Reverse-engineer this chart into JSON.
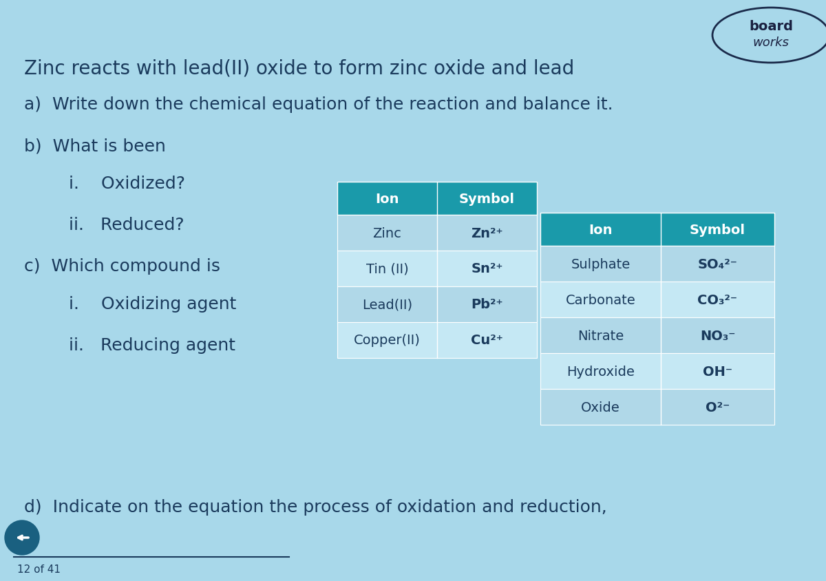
{
  "bg_color": "#a8d8ea",
  "text_color": "#1a3a5c",
  "teal_header_color": "#1a9aaa",
  "table_bg_light": "#b0d8e8",
  "table_bg_lighter": "#c5e8f4",
  "title": "Zinc reacts with lead(II) oxide to form zinc oxide and lead",
  "table1_headers": [
    "Ion",
    "Symbol"
  ],
  "table1_rows": [
    [
      "Zinc",
      "Zn²⁺"
    ],
    [
      "Tin (II)",
      "Sn²⁺"
    ],
    [
      "Lead(II)",
      "Pb²⁺"
    ],
    [
      "Copper(II)",
      "Cu²⁺"
    ]
  ],
  "table2_headers": [
    "Ion",
    "Symbol"
  ],
  "table2_rows": [
    [
      "Sulphate",
      "SO₄²⁻"
    ],
    [
      "Carbonate",
      "CO₃²⁻"
    ],
    [
      "Nitrate",
      "NO₃⁻"
    ],
    [
      "Hydroxide",
      "OH⁻"
    ],
    [
      "Oxide",
      "O²⁻"
    ]
  ],
  "page_num": "12 of 41"
}
